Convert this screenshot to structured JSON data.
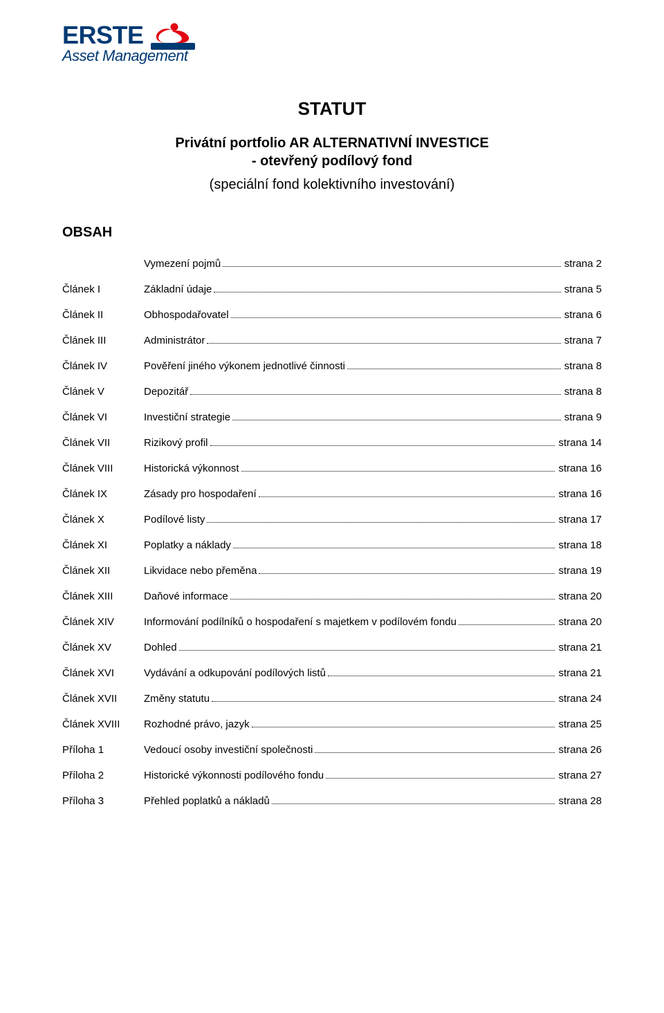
{
  "logo": {
    "word": "ERSTE",
    "subline": "Asset Management",
    "color_primary": "#003a73",
    "color_accent": "#e30613"
  },
  "header": {
    "title": "STATUT",
    "subtitle_line1": "Privátní portfolio AR ALTERNATIVNÍ INVESTICE",
    "subtitle_line2": "- otevřený podílový fond",
    "subtitle2": "(speciální fond kolektivního investování)"
  },
  "obsah_label": "OBSAH",
  "toc": [
    {
      "label": "",
      "text": "Vymezení pojmů",
      "page": "strana 2"
    },
    {
      "label": "Článek I",
      "text": "Základní údaje",
      "page": "strana 5"
    },
    {
      "label": "Článek II",
      "text": "Obhospodařovatel",
      "page": "strana 6"
    },
    {
      "label": "Článek III",
      "text": "Administrátor",
      "page": "strana 7"
    },
    {
      "label": "Článek IV",
      "text": "Pověření jiného výkonem jednotlivé činnosti",
      "page": "strana 8"
    },
    {
      "label": "Článek V",
      "text": "Depozitář",
      "page": "strana 8"
    },
    {
      "label": "Článek VI",
      "text": "Investiční strategie",
      "page": "strana 9"
    },
    {
      "label": "Článek VII",
      "text": "Rizikový profil",
      "page": "strana 14"
    },
    {
      "label": "Článek VIII",
      "text": "Historická výkonnost",
      "page": "strana 16"
    },
    {
      "label": "Článek IX",
      "text": "Zásady pro hospodaření",
      "page": "strana 16"
    },
    {
      "label": "Článek X",
      "text": "Podílové listy",
      "page": "strana 17"
    },
    {
      "label": "Článek XI",
      "text": "Poplatky a náklady",
      "page": "strana 18"
    },
    {
      "label": "Článek XII",
      "text": "Likvidace nebo přeměna",
      "page": "strana 19"
    },
    {
      "label": "Článek XIII",
      "text": "Daňové informace",
      "page": "strana 20"
    },
    {
      "label": "Článek XIV",
      "text": "Informování podílníků o hospodaření s majetkem v podílovém fondu",
      "page": "strana 20"
    },
    {
      "label": "Článek XV",
      "text": "Dohled",
      "page": "strana 21"
    },
    {
      "label": "Článek XVI",
      "text": "Vydávání a odkupování podílových listů",
      "page": "strana 21"
    },
    {
      "label": "Článek XVII",
      "text": "Změny statutu",
      "page": "strana 24"
    },
    {
      "label": "Článek XVIII",
      "text": "Rozhodné právo, jazyk",
      "page": "strana 25"
    },
    {
      "label": "Příloha 1",
      "text": "Vedoucí osoby investiční společnosti",
      "page": "strana 26"
    },
    {
      "label": "Příloha 2",
      "text": "Historické výkonnosti podílového fondu",
      "page": "strana 27"
    },
    {
      "label": "Příloha 3",
      "text": "Přehled poplatků a nákladů",
      "page": "strana 28"
    }
  ]
}
